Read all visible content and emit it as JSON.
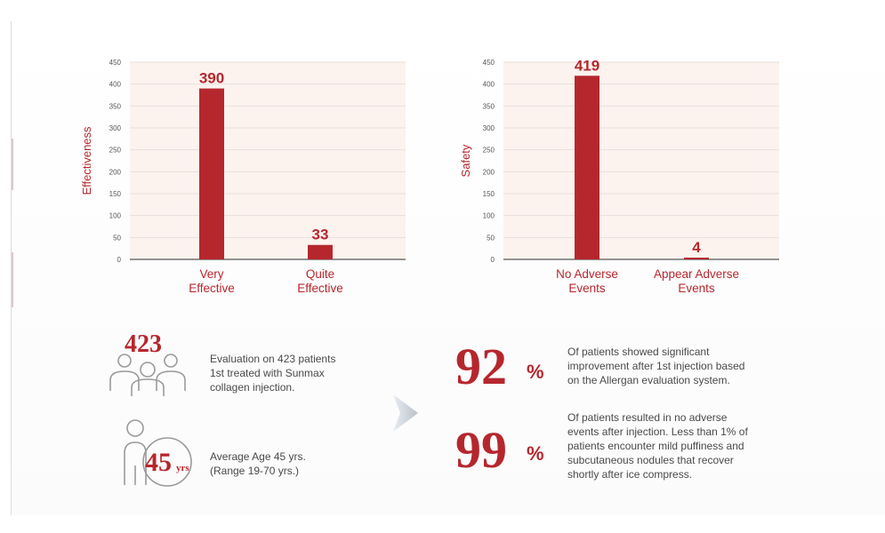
{
  "colors": {
    "accent": "#b5272d",
    "plot_bg": "#fcf3ee",
    "grid": "#e8dfdb",
    "axis": "#555555",
    "tick_text": "#555555",
    "body_text": "#4a4a4a",
    "icon_stroke": "#9a9a9a"
  },
  "chart_data": [
    {
      "type": "bar",
      "categories": [
        [
          "Very",
          "Effective"
        ],
        [
          "Quite",
          "Effective"
        ]
      ],
      "values": [
        390,
        33
      ],
      "ylabel": "Effectiveness",
      "xlabel": "",
      "ylim": [
        0,
        450
      ],
      "yticks": [
        0,
        50,
        100,
        150,
        200,
        250,
        300,
        350,
        400,
        450
      ],
      "data_labels": [
        "390",
        "33"
      ],
      "grid": true,
      "legend": "none"
    },
    {
      "type": "bar",
      "categories": [
        [
          "No Adverse",
          "Events"
        ],
        [
          "Appear Adverse",
          "Events"
        ]
      ],
      "values": [
        419,
        4
      ],
      "ylabel": "Safety",
      "xlabel": "",
      "ylim": [
        0,
        450
      ],
      "yticks": [
        0,
        50,
        100,
        150,
        200,
        250,
        300,
        350,
        400,
        450
      ],
      "data_labels": [
        "419",
        "4"
      ],
      "grid": true,
      "legend": "none"
    }
  ],
  "stats": {
    "patients": {
      "number": "423",
      "icon": "group-people-icon",
      "lines": [
        "Evaluation on 423 patients",
        "1st treated with Sunmax",
        "collagen injection."
      ]
    },
    "age": {
      "number": "45",
      "unit": "yrs",
      "icon": "person-age-icon",
      "lines": [
        "Average Age 45 yrs.",
        "(Range 19-70 yrs.)"
      ]
    },
    "improvement": {
      "number": "92",
      "sign": "%",
      "lines": [
        "Of patients showed significant",
        "improvement after 1st injection based",
        "on the Allergan evaluation system."
      ]
    },
    "no_adverse": {
      "number": "99",
      "sign": "%",
      "lines": [
        "Of patients resulted in no adverse",
        "events after injection. Less than 1% of",
        "patients encounter mild puffiness and",
        "subcutaneous nodules that recover",
        "shortly after ice compress."
      ]
    }
  }
}
